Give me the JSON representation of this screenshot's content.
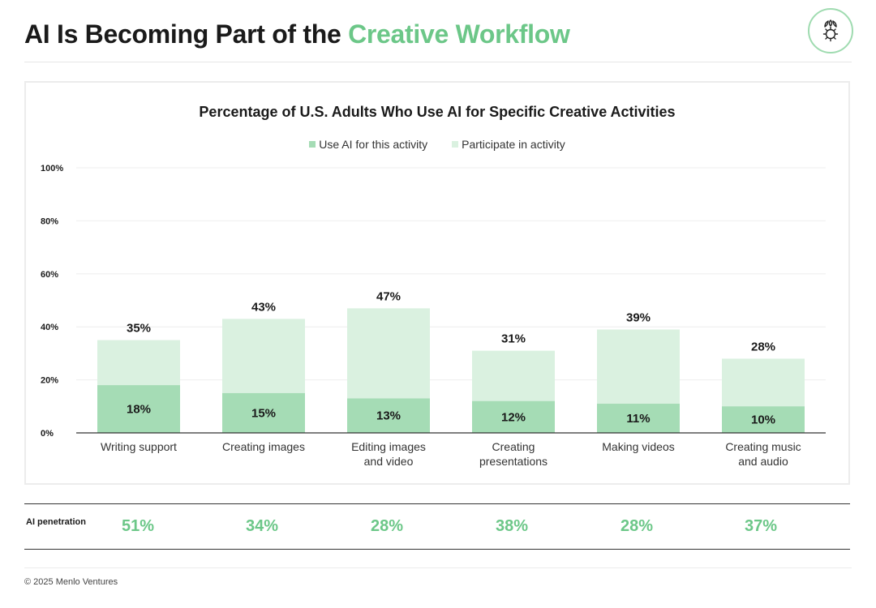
{
  "header": {
    "title_prefix": "AI Is Becoming Part of the",
    "title_accent": "Creative Workflow",
    "logo_icon": "leaf-gear-icon"
  },
  "colors": {
    "accent": "#6cc788",
    "ai_bar": "#a5dcb5",
    "participate_bar": "#daf1e0"
  },
  "chart_data": {
    "type": "bar",
    "title": "Percentage of U.S. Adults Who Use AI for Specific Creative Activities",
    "categories": [
      [
        "Writing support"
      ],
      [
        "Creating images"
      ],
      [
        "Editing images",
        "and video"
      ],
      [
        "Creating",
        "presentations"
      ],
      [
        "Making videos"
      ],
      [
        "Creating music",
        "and audio"
      ]
    ],
    "series": [
      {
        "name": "Use AI for this activity",
        "values": [
          18,
          15,
          13,
          12,
          11,
          10
        ],
        "labels": [
          "18%",
          "15%",
          "13%",
          "12%",
          "11%",
          "10%"
        ]
      },
      {
        "name": "Participate in activity",
        "values": [
          35,
          43,
          47,
          31,
          39,
          28
        ],
        "labels": [
          "35%",
          "43%",
          "47%",
          "31%",
          "39%",
          "28%"
        ]
      }
    ],
    "ylim": [
      0,
      100
    ],
    "yticks": [
      0,
      20,
      40,
      60,
      80,
      100
    ],
    "ytick_labels": [
      "0%",
      "20%",
      "40%",
      "60%",
      "80%",
      "100%"
    ],
    "grid": true,
    "legend_position": "top-center"
  },
  "penetration": {
    "label": "AI penetration",
    "values": [
      "51%",
      "34%",
      "28%",
      "38%",
      "28%",
      "37%"
    ]
  },
  "footer": {
    "copyright": "© 2025 Menlo Ventures"
  }
}
